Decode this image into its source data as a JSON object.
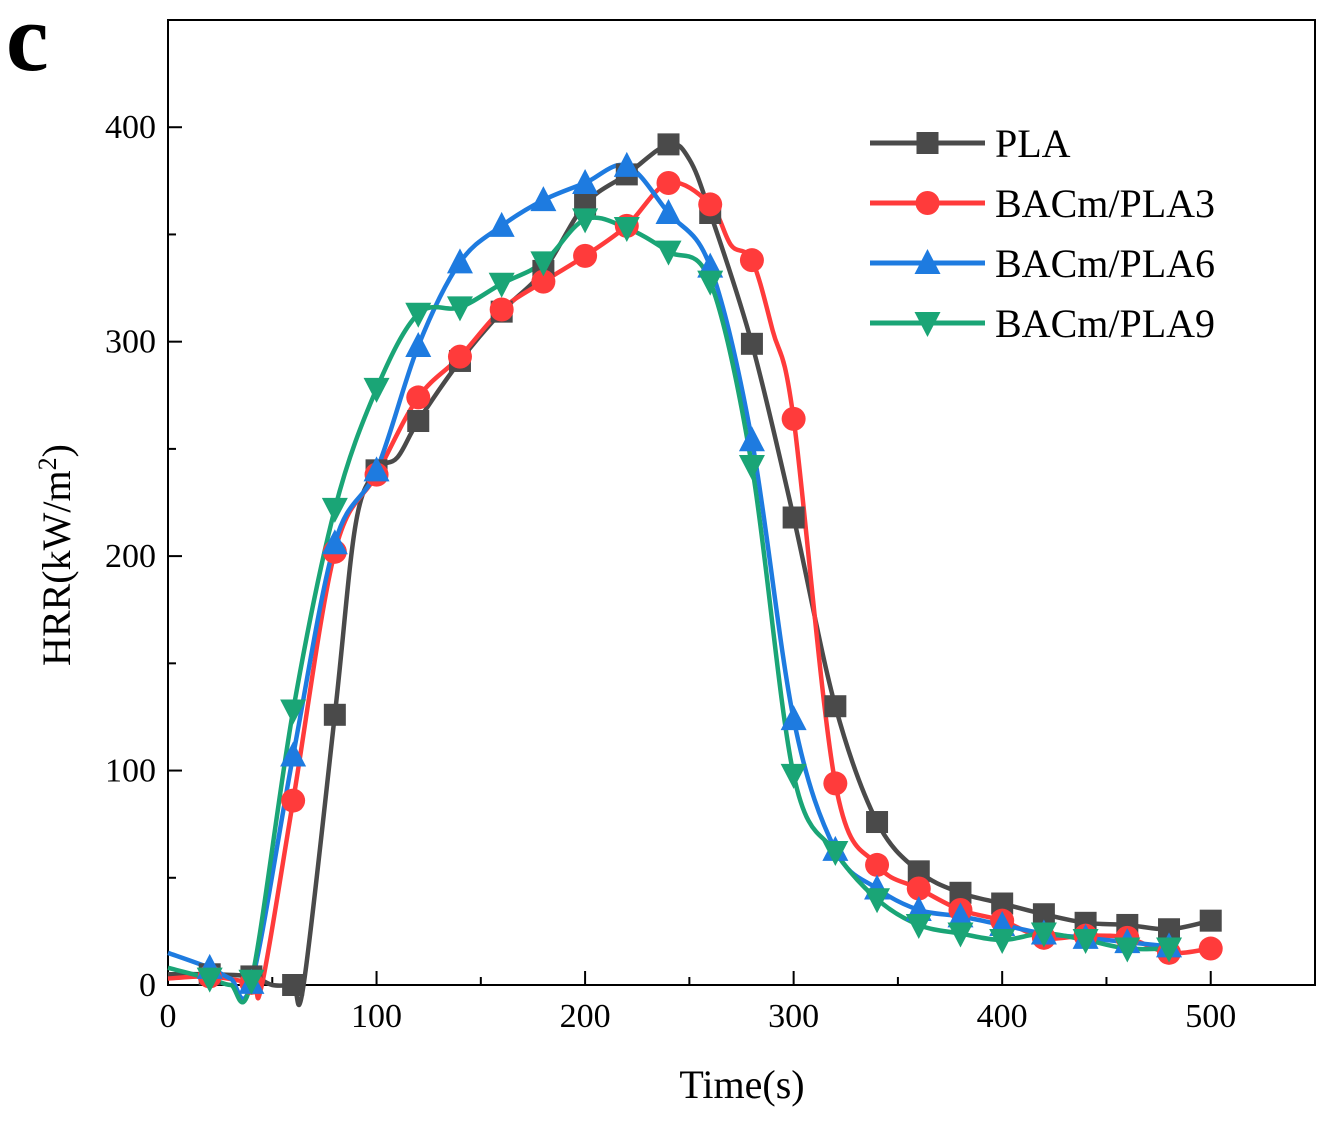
{
  "panel_label": "c",
  "chart_data": {
    "type": "line",
    "title": "",
    "xlabel": "Time(s)",
    "ylabel_main": "HRR(kW/m",
    "ylabel_sup": "2",
    "ylabel_close": ")",
    "xlim": [
      0,
      550
    ],
    "ylim": [
      0,
      450
    ],
    "x_ticks": [
      0,
      100,
      200,
      300,
      400,
      500
    ],
    "y_ticks": [
      0,
      100,
      200,
      300,
      400
    ],
    "x_tick_labels": [
      "0",
      "100",
      "200",
      "300",
      "400",
      "500"
    ],
    "y_tick_labels": [
      "0",
      "100",
      "200",
      "300",
      "400"
    ],
    "legend_position": "top-right",
    "grid": false,
    "series": [
      {
        "name": "PLA",
        "color": "#4a4a4a",
        "marker": "square",
        "points": [
          [
            0,
            5
          ],
          [
            20,
            5
          ],
          [
            40,
            4
          ],
          [
            50,
            0
          ],
          [
            60,
            0
          ],
          [
            65,
            0
          ],
          [
            80,
            126
          ],
          [
            90,
            215
          ],
          [
            100,
            240
          ],
          [
            110,
            246
          ],
          [
            120,
            263
          ],
          [
            140,
            291
          ],
          [
            160,
            314
          ],
          [
            180,
            333
          ],
          [
            200,
            364
          ],
          [
            220,
            378
          ],
          [
            240,
            392
          ],
          [
            250,
            385
          ],
          [
            260,
            360
          ],
          [
            280,
            299
          ],
          [
            300,
            218
          ],
          [
            320,
            130
          ],
          [
            340,
            76
          ],
          [
            360,
            53
          ],
          [
            380,
            43
          ],
          [
            400,
            38
          ],
          [
            420,
            33
          ],
          [
            440,
            29
          ],
          [
            460,
            28
          ],
          [
            480,
            26
          ],
          [
            500,
            30
          ]
        ]
      },
      {
        "name": "BACm/PLA3",
        "color": "#ff3b3b",
        "marker": "circle",
        "points": [
          [
            0,
            3
          ],
          [
            20,
            4
          ],
          [
            40,
            1
          ],
          [
            45,
            0
          ],
          [
            60,
            86
          ],
          [
            80,
            202
          ],
          [
            100,
            238
          ],
          [
            120,
            274
          ],
          [
            140,
            293
          ],
          [
            160,
            315
          ],
          [
            180,
            328
          ],
          [
            200,
            340
          ],
          [
            220,
            354
          ],
          [
            240,
            374
          ],
          [
            260,
            364
          ],
          [
            270,
            345
          ],
          [
            280,
            338
          ],
          [
            290,
            305
          ],
          [
            300,
            264
          ],
          [
            320,
            94
          ],
          [
            340,
            56
          ],
          [
            360,
            45
          ],
          [
            380,
            35
          ],
          [
            400,
            30
          ],
          [
            420,
            22
          ],
          [
            440,
            23
          ],
          [
            460,
            22
          ],
          [
            480,
            15
          ],
          [
            500,
            17
          ]
        ]
      },
      {
        "name": "BACm/PLA6",
        "color": "#1e7be0",
        "marker": "triangle-up",
        "points": [
          [
            0,
            15
          ],
          [
            20,
            8
          ],
          [
            30,
            3
          ],
          [
            40,
            1
          ],
          [
            60,
            107
          ],
          [
            80,
            206
          ],
          [
            100,
            240
          ],
          [
            120,
            298
          ],
          [
            140,
            337
          ],
          [
            160,
            354
          ],
          [
            180,
            366
          ],
          [
            200,
            374
          ],
          [
            220,
            382
          ],
          [
            240,
            360
          ],
          [
            260,
            335
          ],
          [
            280,
            254
          ],
          [
            300,
            124
          ],
          [
            320,
            63
          ],
          [
            340,
            45
          ],
          [
            360,
            35
          ],
          [
            380,
            32
          ],
          [
            400,
            28
          ],
          [
            420,
            24
          ],
          [
            440,
            22
          ],
          [
            460,
            20
          ],
          [
            480,
            18
          ]
        ]
      },
      {
        "name": "BACm/PLA9",
        "color": "#1aa576",
        "marker": "triangle-down",
        "points": [
          [
            0,
            8
          ],
          [
            20,
            3
          ],
          [
            30,
            0
          ],
          [
            40,
            2
          ],
          [
            60,
            128
          ],
          [
            80,
            222
          ],
          [
            100,
            278
          ],
          [
            120,
            313
          ],
          [
            140,
            316
          ],
          [
            160,
            327
          ],
          [
            180,
            337
          ],
          [
            200,
            357
          ],
          [
            220,
            353
          ],
          [
            240,
            342
          ],
          [
            260,
            328
          ],
          [
            280,
            242
          ],
          [
            300,
            98
          ],
          [
            320,
            62
          ],
          [
            340,
            40
          ],
          [
            360,
            28
          ],
          [
            380,
            24
          ],
          [
            400,
            21
          ],
          [
            420,
            24
          ],
          [
            440,
            21
          ],
          [
            460,
            17
          ],
          [
            480,
            17
          ]
        ]
      }
    ]
  }
}
